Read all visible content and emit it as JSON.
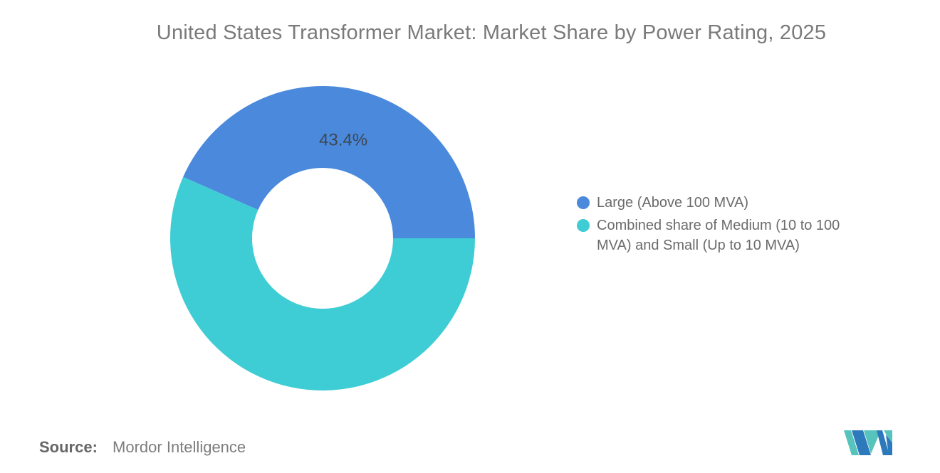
{
  "chart_data": {
    "type": "pie",
    "subtype": "donut",
    "title": "United States Transformer Market: Market Share by Power Rating, 2025",
    "legend_position": "right",
    "inner_radius_ratio": 0.463,
    "start_angle": "first slice begins at 3 o'clock and sweeps counterclockwise over the top",
    "points": [
      {
        "label": "Large (Above 100 MVA)",
        "value": 43.4,
        "color": "#4A89DC",
        "data_label": "43.4%"
      },
      {
        "label": "Combined share of Medium (10 to 100 MVA) and Small (Up to 10 MVA)",
        "value": 56.6,
        "color": "#3ECDD4",
        "data_label": ""
      }
    ]
  },
  "footer": {
    "source_label": "Source:",
    "source_value": "Mordor Intelligence"
  },
  "branding": {
    "logo_name": "mordor-intelligence-logo",
    "logo_colors": {
      "teal": "#56C3BD",
      "blue": "#2C79BB"
    }
  },
  "colors": {
    "background": "#FFFFFF",
    "title_text": "#7A7A7A",
    "legend_text": "#6B6B6B",
    "data_label_text": "#3D4751",
    "source_label_text": "#666666",
    "source_value_text": "#7D7D7D"
  }
}
